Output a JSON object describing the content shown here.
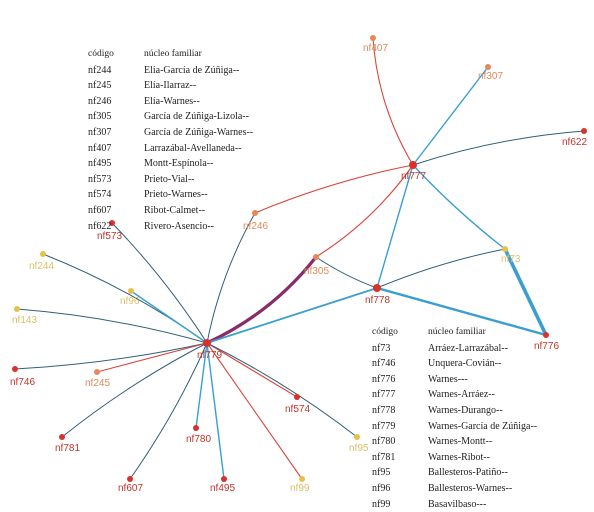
{
  "colors": {
    "node_red": "#d9312b",
    "node_orange": "#e8875a",
    "node_yellow": "#e8c14a",
    "edge_blue": "#3a9fd0",
    "edge_red": "#d9453d",
    "edge_dark": "#2f5f7a",
    "edge_purple": "#8b2a6a",
    "label_red": "#c0342c",
    "label_orange": "#e08a5a",
    "label_yellow": "#dcc068"
  },
  "nodes": [
    {
      "id": "nf779",
      "label": "nf779",
      "color": "red",
      "hub": true
    },
    {
      "id": "nf778",
      "label": "nf778",
      "color": "red",
      "hub": true
    },
    {
      "id": "nf777",
      "label": "nf777",
      "color": "red",
      "hub": true
    },
    {
      "id": "nf776",
      "label": "nf776",
      "color": "red"
    },
    {
      "id": "nf407",
      "label": "nf407",
      "color": "orange"
    },
    {
      "id": "nf307",
      "label": "nf307",
      "color": "orange"
    },
    {
      "id": "nf622",
      "label": "nf622",
      "color": "red"
    },
    {
      "id": "nf246",
      "label": "nf246",
      "color": "orange"
    },
    {
      "id": "nf305",
      "label": "nf305",
      "color": "orange"
    },
    {
      "id": "nf573",
      "label": "nf573",
      "color": "red"
    },
    {
      "id": "nf244",
      "label": "nf244",
      "color": "yellow"
    },
    {
      "id": "nf96",
      "label": "nf96",
      "color": "yellow"
    },
    {
      "id": "nf143",
      "label": "nf143",
      "color": "yellow"
    },
    {
      "id": "nf746",
      "label": "nf746",
      "color": "red"
    },
    {
      "id": "nf245",
      "label": "nf245",
      "color": "orange"
    },
    {
      "id": "nf781",
      "label": "nf781",
      "color": "red"
    },
    {
      "id": "nf780",
      "label": "nf780",
      "color": "red"
    },
    {
      "id": "nf607",
      "label": "nf607",
      "color": "red"
    },
    {
      "id": "nf495",
      "label": "nf495",
      "color": "red"
    },
    {
      "id": "nf99",
      "label": "nf99",
      "color": "yellow"
    },
    {
      "id": "nf574",
      "label": "nf574",
      "color": "red"
    },
    {
      "id": "nf95",
      "label": "nf95",
      "color": "yellow"
    },
    {
      "id": "nf73",
      "label": "nf73",
      "color": "yellow"
    }
  ],
  "edges": [
    {
      "from": "nf779",
      "to": "nf573",
      "color": "dark"
    },
    {
      "from": "nf779",
      "to": "nf244",
      "color": "dark"
    },
    {
      "from": "nf779",
      "to": "nf96",
      "color": "blue"
    },
    {
      "from": "nf779",
      "to": "nf143",
      "color": "dark"
    },
    {
      "from": "nf779",
      "to": "nf746",
      "color": "dark"
    },
    {
      "from": "nf779",
      "to": "nf245",
      "color": "red"
    },
    {
      "from": "nf779",
      "to": "nf781",
      "color": "dark"
    },
    {
      "from": "nf779",
      "to": "nf780",
      "color": "blue"
    },
    {
      "from": "nf779",
      "to": "nf607",
      "color": "dark"
    },
    {
      "from": "nf779",
      "to": "nf495",
      "color": "blue"
    },
    {
      "from": "nf779",
      "to": "nf99",
      "color": "red"
    },
    {
      "from": "nf779",
      "to": "nf574",
      "color": "red"
    },
    {
      "from": "nf779",
      "to": "nf95",
      "color": "dark"
    },
    {
      "from": "nf779",
      "to": "nf246",
      "color": "dark"
    },
    {
      "from": "nf779",
      "to": "nf305",
      "color": "purple"
    },
    {
      "from": "nf779",
      "to": "nf778",
      "color": "blue"
    },
    {
      "from": "nf778",
      "to": "nf305",
      "color": "dark"
    },
    {
      "from": "nf778",
      "to": "nf777",
      "color": "blue"
    },
    {
      "from": "nf778",
      "to": "nf776",
      "color": "blue"
    },
    {
      "from": "nf778",
      "to": "nf73",
      "color": "dark"
    },
    {
      "from": "nf777",
      "to": "nf407",
      "color": "red"
    },
    {
      "from": "nf777",
      "to": "nf307",
      "color": "blue"
    },
    {
      "from": "nf777",
      "to": "nf622",
      "color": "dark"
    },
    {
      "from": "nf777",
      "to": "nf246",
      "color": "red"
    },
    {
      "from": "nf777",
      "to": "nf305",
      "color": "red"
    },
    {
      "from": "nf777",
      "to": "nf73",
      "color": "blue"
    },
    {
      "from": "nf73",
      "to": "nf776",
      "color": "blue"
    }
  ],
  "legend_a": {
    "header_code": "código",
    "header_family": "núcleo familiar",
    "rows": [
      {
        "code": "nf244",
        "family": "Elía-García de Zúñiga--"
      },
      {
        "code": "nf245",
        "family": "Elía-Ilarraz--"
      },
      {
        "code": "nf246",
        "family": "Elía-Warnes--"
      },
      {
        "code": "nf305",
        "family": "García de Zúñiga-Lizola--"
      },
      {
        "code": "nf307",
        "family": "García de Zúñiga-Warnes--"
      },
      {
        "code": "nf407",
        "family": "Larrazábal-Avellaneda--"
      },
      {
        "code": "nf495",
        "family": "Montt-Espínola--"
      },
      {
        "code": "nf573",
        "family": "Prieto-Vial--"
      },
      {
        "code": "nf574",
        "family": "Prieto-Warnes--"
      },
      {
        "code": "nf607",
        "family": "Ribot-Calmet--"
      },
      {
        "code": "nf622",
        "family": "Rivero-Asencio--"
      }
    ]
  },
  "legend_b": {
    "header_code": "código",
    "header_family": "núcleo familiar",
    "rows": [
      {
        "code": "nf73",
        "family": "Arráez-Larrazábal--"
      },
      {
        "code": "nf746",
        "family": "Unquera-Covián--"
      },
      {
        "code": "nf776",
        "family": "Warnes---"
      },
      {
        "code": "nf777",
        "family": "Warnes-Arráez--"
      },
      {
        "code": "nf778",
        "family": "Warnes-Durango--"
      },
      {
        "code": "nf779",
        "family": "Warnes-García de Zúñiga--"
      },
      {
        "code": "nf780",
        "family": "Warnes-Montt--"
      },
      {
        "code": "nf781",
        "family": "Warnes-Ribot--"
      },
      {
        "code": "nf95",
        "family": "Ballesteros-Patiño--"
      },
      {
        "code": "nf96",
        "family": "Ballesteros-Warnes--"
      },
      {
        "code": "nf99",
        "family": "Basavilbaso---"
      }
    ]
  }
}
